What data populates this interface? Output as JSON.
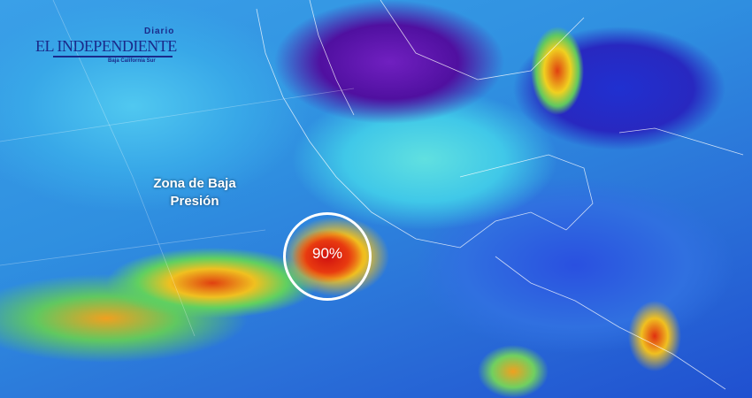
{
  "logo": {
    "top": "Diario",
    "main": "EL INDEPENDIENTE",
    "sub": "Baja California Sur"
  },
  "annotation": {
    "line1": "Zona de Baja",
    "line2": "Presión"
  },
  "probability": "90%",
  "colors": {
    "ocean_clear": "#2f8fe0",
    "cloud_low": "#50c8f0",
    "cloud_high": "#f0c020",
    "storm_core": "#d01010",
    "cold_top": "#5010a0",
    "marker": "#ffffff"
  }
}
